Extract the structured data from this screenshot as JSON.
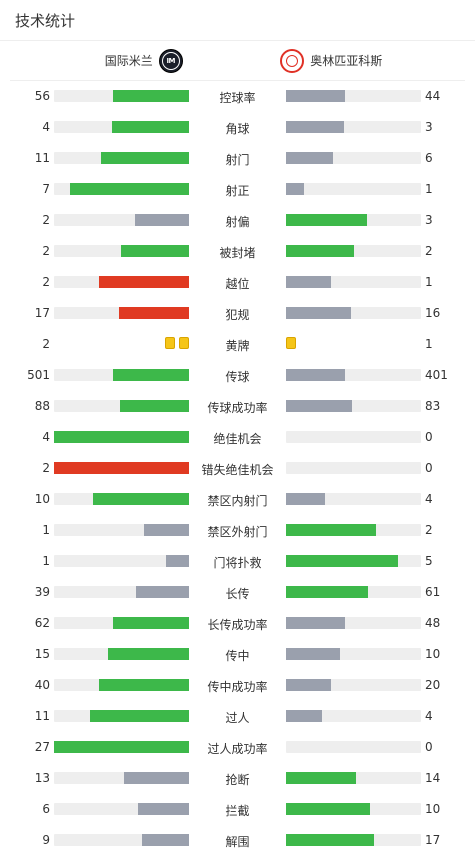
{
  "header": {
    "title": "技术统计"
  },
  "teams": {
    "home": {
      "name": "国际米兰",
      "logo_icon": "inter-milan-logo-icon"
    },
    "away": {
      "name": "奥林匹亚科斯",
      "logo_icon": "olympiacos-logo-icon"
    }
  },
  "colors": {
    "win": "#3db84a",
    "lose": "#9aa0ad",
    "foul": "#e03a22",
    "track": "#eeeeee",
    "card": "#f5c518"
  },
  "stats": [
    {
      "label": "控球率",
      "home": "56",
      "away": "44",
      "home_frac": 0.56,
      "away_frac": 0.44,
      "home_color": "#3db84a",
      "away_color": "#9aa0ad"
    },
    {
      "label": "角球",
      "home": "4",
      "away": "3",
      "home_frac": 0.57,
      "away_frac": 0.43,
      "home_color": "#3db84a",
      "away_color": "#9aa0ad"
    },
    {
      "label": "射门",
      "home": "11",
      "away": "6",
      "home_frac": 0.65,
      "away_frac": 0.35,
      "home_color": "#3db84a",
      "away_color": "#9aa0ad"
    },
    {
      "label": "射正",
      "home": "7",
      "away": "1",
      "home_frac": 0.88,
      "away_frac": 0.13,
      "home_color": "#3db84a",
      "away_color": "#9aa0ad"
    },
    {
      "label": "射偏",
      "home": "2",
      "away": "3",
      "home_frac": 0.4,
      "away_frac": 0.6,
      "home_color": "#9aa0ad",
      "away_color": "#3db84a"
    },
    {
      "label": "被封堵",
      "home": "2",
      "away": "2",
      "home_frac": 0.5,
      "away_frac": 0.5,
      "home_color": "#3db84a",
      "away_color": "#3db84a"
    },
    {
      "label": "越位",
      "home": "2",
      "away": "1",
      "home_frac": 0.67,
      "away_frac": 0.33,
      "home_color": "#e03a22",
      "away_color": "#9aa0ad"
    },
    {
      "label": "犯规",
      "home": "17",
      "away": "16",
      "home_frac": 0.52,
      "away_frac": 0.48,
      "home_color": "#e03a22",
      "away_color": "#9aa0ad"
    },
    {
      "label": "黄牌",
      "home": "2",
      "away": "1",
      "cards": true,
      "home_cards": 2,
      "away_cards": 1
    },
    {
      "label": "传球",
      "home": "501",
      "away": "401",
      "home_frac": 0.56,
      "away_frac": 0.44,
      "home_color": "#3db84a",
      "away_color": "#9aa0ad"
    },
    {
      "label": "传球成功率",
      "home": "88",
      "away": "83",
      "home_frac": 0.51,
      "away_frac": 0.49,
      "home_color": "#3db84a",
      "away_color": "#9aa0ad"
    },
    {
      "label": "绝佳机会",
      "home": "4",
      "away": "0",
      "home_frac": 1.0,
      "away_frac": 0.0,
      "home_color": "#3db84a",
      "away_color": "#9aa0ad"
    },
    {
      "label": "错失绝佳机会",
      "home": "2",
      "away": "0",
      "home_frac": 1.0,
      "away_frac": 0.0,
      "home_color": "#e03a22",
      "away_color": "#9aa0ad"
    },
    {
      "label": "禁区内射门",
      "home": "10",
      "away": "4",
      "home_frac": 0.71,
      "away_frac": 0.29,
      "home_color": "#3db84a",
      "away_color": "#9aa0ad"
    },
    {
      "label": "禁区外射门",
      "home": "1",
      "away": "2",
      "home_frac": 0.33,
      "away_frac": 0.67,
      "home_color": "#9aa0ad",
      "away_color": "#3db84a"
    },
    {
      "label": "门将扑救",
      "home": "1",
      "away": "5",
      "home_frac": 0.17,
      "away_frac": 0.83,
      "home_color": "#9aa0ad",
      "away_color": "#3db84a"
    },
    {
      "label": "长传",
      "home": "39",
      "away": "61",
      "home_frac": 0.39,
      "away_frac": 0.61,
      "home_color": "#9aa0ad",
      "away_color": "#3db84a"
    },
    {
      "label": "长传成功率",
      "home": "62",
      "away": "48",
      "home_frac": 0.56,
      "away_frac": 0.44,
      "home_color": "#3db84a",
      "away_color": "#9aa0ad"
    },
    {
      "label": "传中",
      "home": "15",
      "away": "10",
      "home_frac": 0.6,
      "away_frac": 0.4,
      "home_color": "#3db84a",
      "away_color": "#9aa0ad"
    },
    {
      "label": "传中成功率",
      "home": "40",
      "away": "20",
      "home_frac": 0.67,
      "away_frac": 0.33,
      "home_color": "#3db84a",
      "away_color": "#9aa0ad"
    },
    {
      "label": "过人",
      "home": "11",
      "away": "4",
      "home_frac": 0.73,
      "away_frac": 0.27,
      "home_color": "#3db84a",
      "away_color": "#9aa0ad"
    },
    {
      "label": "过人成功率",
      "home": "27",
      "away": "0",
      "home_frac": 1.0,
      "away_frac": 0.0,
      "home_color": "#3db84a",
      "away_color": "#9aa0ad"
    },
    {
      "label": "抢断",
      "home": "13",
      "away": "14",
      "home_frac": 0.48,
      "away_frac": 0.52,
      "home_color": "#9aa0ad",
      "away_color": "#3db84a"
    },
    {
      "label": "拦截",
      "home": "6",
      "away": "10",
      "home_frac": 0.38,
      "away_frac": 0.62,
      "home_color": "#9aa0ad",
      "away_color": "#3db84a"
    },
    {
      "label": "解围",
      "home": "9",
      "away": "17",
      "home_frac": 0.35,
      "away_frac": 0.65,
      "home_color": "#9aa0ad",
      "away_color": "#3db84a"
    }
  ]
}
